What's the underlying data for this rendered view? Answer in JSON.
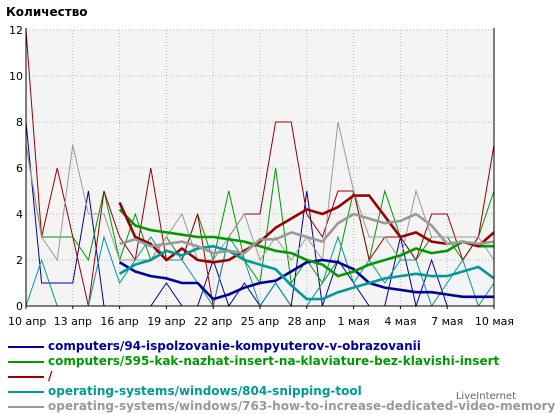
{
  "chart_data": {
    "type": "line",
    "title": "",
    "ylabel": "Количество",
    "xlabel": "",
    "ylim": [
      0,
      12
    ],
    "yticks": [
      "0",
      "2",
      "4",
      "6",
      "8",
      "10",
      "12"
    ],
    "grid": true,
    "legend": "bottom",
    "x_ticks": [
      {
        "day": 0,
        "label": "10 апр"
      },
      {
        "day": 3,
        "label": "13 апр"
      },
      {
        "day": 6,
        "label": "16 апр"
      },
      {
        "day": 9,
        "label": "19 апр"
      },
      {
        "day": 12,
        "label": "22 апр"
      },
      {
        "day": 15,
        "label": "25 апр"
      },
      {
        "day": 18,
        "label": "28 апр"
      },
      {
        "day": 21,
        "label": "1 мая"
      },
      {
        "day": 24,
        "label": "4 мая"
      },
      {
        "day": 27,
        "label": "7 мая"
      },
      {
        "day": 30,
        "label": "10 мая"
      }
    ],
    "x": [
      0,
      1,
      2,
      3,
      4,
      5,
      6,
      7,
      8,
      9,
      10,
      11,
      12,
      13,
      14,
      15,
      16,
      17,
      18,
      19,
      20,
      21,
      22,
      23,
      24,
      25,
      26,
      27,
      28,
      29,
      30
    ],
    "series": [
      {
        "name": "computers/94-ispolzovanie-kompyuterov-v-obrazovanii",
        "color": "#000099",
        "thin": [
          8,
          1,
          1,
          1,
          5,
          0,
          0,
          0,
          0,
          1,
          0,
          0,
          2,
          0,
          1,
          0,
          1,
          0,
          5,
          0,
          2,
          1,
          0,
          0,
          3,
          0,
          2,
          0,
          0,
          0,
          0
        ],
        "avg": [
          null,
          null,
          null,
          null,
          null,
          null,
          1.9,
          1.5,
          1.3,
          1.2,
          1.0,
          1.0,
          0.3,
          0.5,
          0.8,
          1.0,
          1.1,
          1.5,
          1.9,
          2.0,
          1.9,
          1.6,
          1.0,
          0.8,
          0.7,
          0.6,
          0.6,
          0.5,
          0.4,
          0.4,
          0.4
        ]
      },
      {
        "name": "computers/595-kak-nazhat-insert-na-klaviature-bez-klavishi-insert",
        "color": "#009900",
        "thin": [
          7,
          3,
          3,
          3,
          2,
          5,
          2,
          4,
          2,
          3,
          2,
          4,
          2,
          5,
          2,
          1,
          6,
          1,
          2,
          1,
          2,
          5,
          2,
          5,
          3,
          2,
          3,
          3,
          2,
          3,
          5
        ],
        "avg": [
          null,
          null,
          null,
          null,
          null,
          null,
          4.2,
          3.5,
          3.3,
          3.2,
          3.1,
          3.0,
          3.0,
          2.9,
          2.8,
          2.6,
          2.4,
          2.3,
          2.0,
          1.8,
          1.3,
          1.5,
          1.8,
          2.0,
          2.2,
          2.5,
          2.3,
          2.4,
          2.8,
          2.6,
          2.6
        ]
      },
      {
        "name": "/",
        "color": "#990000",
        "thin": [
          12,
          3,
          6,
          3,
          0,
          5,
          3,
          2,
          6,
          2,
          2,
          4,
          0,
          3,
          4,
          4,
          8,
          8,
          4,
          3,
          5,
          5,
          2,
          3,
          3,
          2,
          4,
          4,
          2,
          3,
          7
        ],
        "avg": [
          null,
          null,
          null,
          null,
          null,
          null,
          4.5,
          3.0,
          2.7,
          2.0,
          2.5,
          2.0,
          1.9,
          2.0,
          2.4,
          2.8,
          3.4,
          3.8,
          4.2,
          4.0,
          4.3,
          4.8,
          4.8,
          3.9,
          3.0,
          3.2,
          2.8,
          2.7,
          2.8,
          2.6,
          3.2
        ]
      },
      {
        "name": "operating-systems/windows/804-snipping-tool",
        "color": "#009999",
        "thin": [
          0,
          2,
          0,
          0,
          0,
          3,
          1,
          2,
          3,
          2,
          2,
          1,
          0,
          3,
          2,
          0,
          1,
          0,
          0,
          1,
          3,
          1,
          2,
          1,
          2,
          2,
          0,
          1,
          2,
          0,
          1
        ],
        "avg": [
          null,
          null,
          null,
          null,
          null,
          null,
          1.4,
          1.8,
          2.0,
          2.4,
          2.2,
          2.5,
          2.6,
          2.4,
          2.0,
          1.8,
          1.6,
          0.9,
          0.3,
          0.3,
          0.6,
          0.8,
          1.0,
          1.2,
          1.3,
          1.4,
          1.3,
          1.3,
          1.5,
          1.7,
          1.2
        ]
      },
      {
        "name": "operating-systems/windows/763-how-to-increase-dedicated-video-memory",
        "color": "#999999",
        "thin": [
          7,
          3,
          2,
          7,
          4,
          4,
          2,
          2,
          2,
          3,
          4,
          2,
          2,
          3,
          4,
          2,
          3,
          2,
          3,
          2,
          8,
          5,
          3,
          3,
          2,
          5,
          3,
          3,
          3,
          3,
          2
        ],
        "avg": [
          null,
          null,
          null,
          null,
          null,
          null,
          2.7,
          2.9,
          2.6,
          2.7,
          2.8,
          2.6,
          2.3,
          2.4,
          2.3,
          2.9,
          2.9,
          3.2,
          3.0,
          2.8,
          3.6,
          4.0,
          3.8,
          3.6,
          3.7,
          4.0,
          3.5,
          2.7,
          2.8,
          2.7,
          2.8
        ]
      }
    ]
  },
  "watermark": "LiveInternet"
}
